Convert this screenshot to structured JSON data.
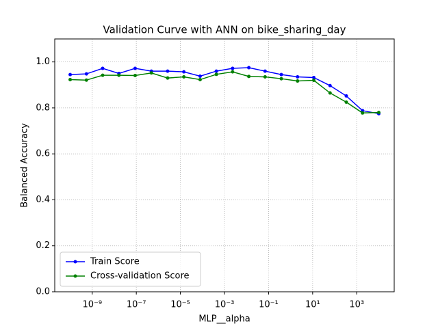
{
  "chart_data": {
    "type": "line",
    "title": "Validation Curve with ANN on bike_sharing_day",
    "xlabel": "MLP__alpha",
    "ylabel": "Balanced Accuracy",
    "xscale": "log",
    "grid": true,
    "legend": "lower left",
    "x": [
      1e-10,
      5.456e-10,
      2.976e-09,
      1.624e-08,
      8.859e-08,
      4.833e-07,
      2.637e-06,
      1.438e-05,
      7.848e-05,
      0.0004281,
      0.002336,
      0.01274,
      0.06952,
      0.3793,
      2.069,
      11.29,
      61.58,
      336.0,
      1833,
      10000
    ],
    "series": [
      {
        "name": "Train Score",
        "color": "#0000ff",
        "values": [
          0.945,
          0.948,
          0.972,
          0.95,
          0.972,
          0.96,
          0.96,
          0.957,
          0.938,
          0.96,
          0.972,
          0.975,
          0.96,
          0.945,
          0.935,
          0.932,
          0.897,
          0.852,
          0.788,
          0.775
        ]
      },
      {
        "name": "Cross-validation Score",
        "color": "#008000",
        "values": [
          0.923,
          0.921,
          0.942,
          0.942,
          0.941,
          0.952,
          0.93,
          0.935,
          0.923,
          0.946,
          0.957,
          0.937,
          0.935,
          0.927,
          0.917,
          0.92,
          0.865,
          0.825,
          0.778,
          0.78
        ]
      }
    ],
    "xlim": [
      1.995e-11,
      50119
    ],
    "xticks": [
      {
        "value": 1e-09,
        "label": "10⁻⁹"
      },
      {
        "value": 1e-07,
        "label": "10⁻⁷"
      },
      {
        "value": 1e-05,
        "label": "10⁻⁵"
      },
      {
        "value": 0.001,
        "label": "10⁻³"
      },
      {
        "value": 0.1,
        "label": "10⁻¹"
      },
      {
        "value": 10,
        "label": "10¹"
      },
      {
        "value": 1000,
        "label": "10³"
      }
    ],
    "ylim": [
      0,
      1.1
    ],
    "yticks": [
      {
        "value": 0,
        "label": "0.0"
      },
      {
        "value": 0.2,
        "label": "0.2"
      },
      {
        "value": 0.4,
        "label": "0.4"
      },
      {
        "value": 0.6,
        "label": "0.6"
      },
      {
        "value": 0.8,
        "label": "0.8"
      },
      {
        "value": 1,
        "label": "1.0"
      }
    ]
  }
}
